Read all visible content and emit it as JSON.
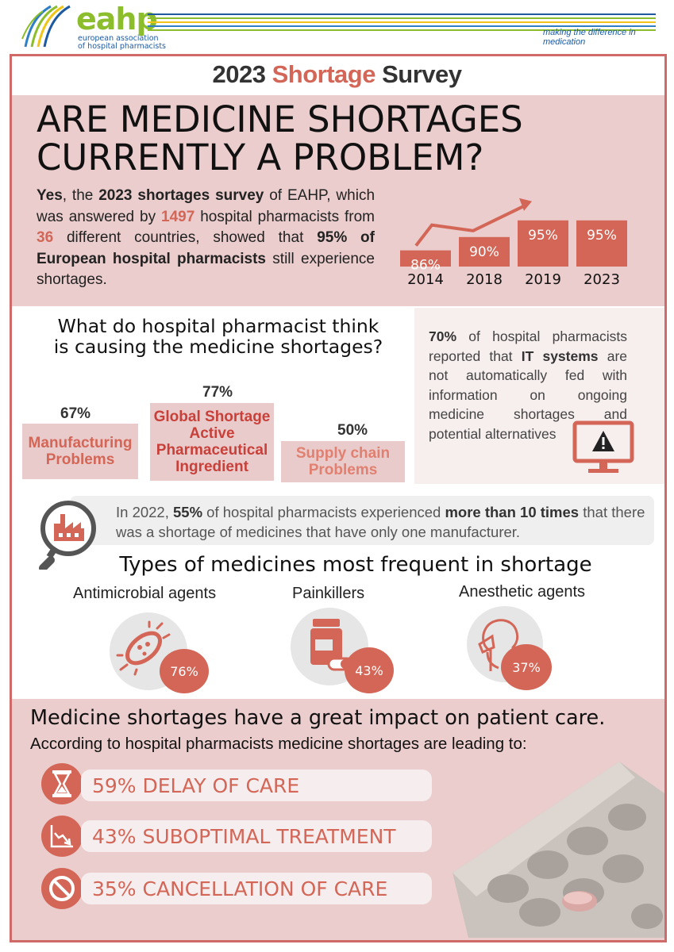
{
  "header": {
    "logo_text": "eahp",
    "org_line1": "european association",
    "org_line2": "of hospital pharmacists",
    "tagline": "making the difference in medication"
  },
  "survey_title": {
    "year": "2023",
    "word": "Shortage",
    "rest": "Survey"
  },
  "hero": {
    "question_line1": "ARE MEDICINE SHORTAGES",
    "question_line2": "CURRENTLY A PROBLEM?",
    "t1": "Yes",
    "t2": ", the ",
    "t3": "2023 shortages survey",
    "t4": " of EAHP, which was answered by ",
    "t5": "1497",
    "t6": " hospital pharmacists from ",
    "t7": "36",
    "t8": " different countries, showed that ",
    "t9": "95% of European hospital pharmacists",
    "t10": " still experience shortages."
  },
  "chart_data": {
    "type": "bar",
    "categories": [
      "2014",
      "2018",
      "2019",
      "2023"
    ],
    "values": [
      86,
      90,
      95,
      95
    ],
    "data_labels": [
      "86%",
      "90%",
      "95%",
      "95%"
    ],
    "trend_arrow": true
  },
  "causes": {
    "question_line1": "What do hospital pharmacist think",
    "question_line2": "is causing the medicine shortages?",
    "items": [
      {
        "pct": "67%",
        "label_line1": "Manufacturing",
        "label_line2": "Problems",
        "value": 67
      },
      {
        "pct": "77%",
        "label_line1": "Global Shortage",
        "label_line2": "Active",
        "label_line3": "Pharmaceutical",
        "label_line4": "Ingredient",
        "value": 77
      },
      {
        "pct": "50%",
        "label_line1": "Supply chain",
        "label_line2": "Problems",
        "value": 50
      }
    ]
  },
  "it_systems": {
    "pct": "70%",
    "text1": " of hospital pharmacists reported that ",
    "bold": "IT systems",
    "text2": " are not automatically fed with information on ongoing medicine shortages and potential alternatives",
    "icon": "monitor-warning-icon"
  },
  "manufacturer": {
    "t1": "In 2022, ",
    "t2": "55%",
    "t3": " of hospital pharmacists experienced ",
    "t4": "more than 10 times",
    "t5": " that there was a shortage of medicines that have only one manufacturer.",
    "icon": "magnifier-factory-icon"
  },
  "types": {
    "title": "Types of medicines most frequent in shortage",
    "items": [
      {
        "label": "Antimicrobial agents",
        "pct": "76%",
        "icon": "bacteria-icon"
      },
      {
        "label": "Painkillers",
        "pct": "43%",
        "icon": "pill-bottle-icon"
      },
      {
        "label": "Anesthetic agents",
        "pct": "37%",
        "icon": "anesthesia-mask-icon"
      }
    ]
  },
  "impact": {
    "title": "Medicine shortages have a great impact on patient care.",
    "subtitle": "According to hospital pharmacists medicine shortages are leading to:",
    "items": [
      {
        "label": "59% DELAY OF CARE",
        "icon": "hourglass-icon"
      },
      {
        "label": "43% SUBOPTIMAL TREATMENT",
        "icon": "declining-chart-icon"
      },
      {
        "label": "35% CANCELLATION OF CARE",
        "icon": "prohibited-icon"
      }
    ]
  },
  "colors": {
    "accent": "#d36657",
    "pink": "#eacdcc",
    "frame": "#cf6a68",
    "logo_green": "#8bbd2c",
    "logo_blue": "#1d5aa0"
  }
}
